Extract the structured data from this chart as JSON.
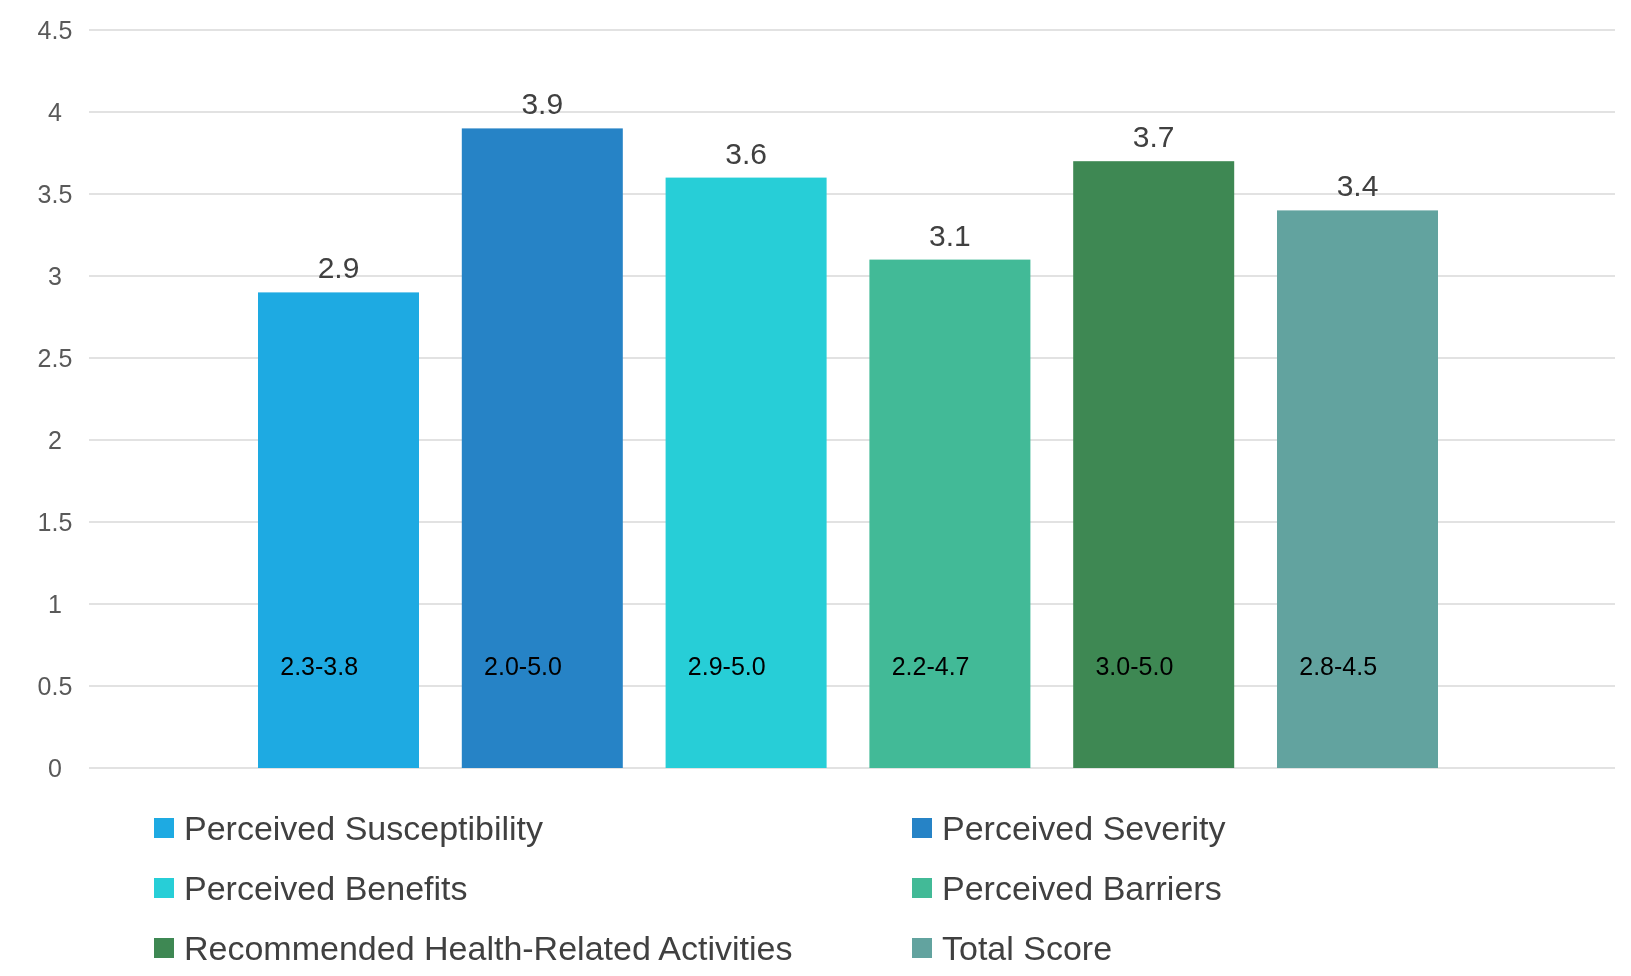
{
  "chart_data": {
    "type": "bar",
    "categories": [
      null
    ],
    "series": [
      {
        "name": "Perceived Susceptibility",
        "color": "#1eaae2",
        "values": [
          2.9
        ]
      },
      {
        "name": "Perceived Severity",
        "color": "#2683c6",
        "values": [
          3.9
        ]
      },
      {
        "name": "Perceived Benefits",
        "color": "#27ced7",
        "values": [
          3.6
        ]
      },
      {
        "name": "Perceived Barriers",
        "color": "#42ba97",
        "values": [
          3.1
        ]
      },
      {
        "name": "Recommended Health-Related Activities",
        "color": "#3e8853",
        "values": [
          3.7
        ]
      },
      {
        "name": "Total Score",
        "color": "#62a39f",
        "values": [
          3.4
        ]
      }
    ],
    "ylim": [
      0,
      4.5
    ],
    "yticks": [
      0,
      {
        "value": 0.5,
        "label": "0.5"
      },
      1,
      {
        "value": 1.5,
        "label": "1.5"
      },
      2,
      {
        "value": 2.5,
        "label": "2.5"
      },
      3,
      {
        "value": 3.5,
        "label": "3.5"
      },
      4,
      {
        "value": 4.5,
        "label": "4.5"
      }
    ],
    "grid": "y",
    "legend": "bottom",
    "data_labels": true,
    "annotations": [
      "2.3-3.8",
      "2.0-5.0",
      "2.9-5.0",
      "2.2-4.7",
      "3.0-5.0",
      "2.8-4.5"
    ]
  }
}
